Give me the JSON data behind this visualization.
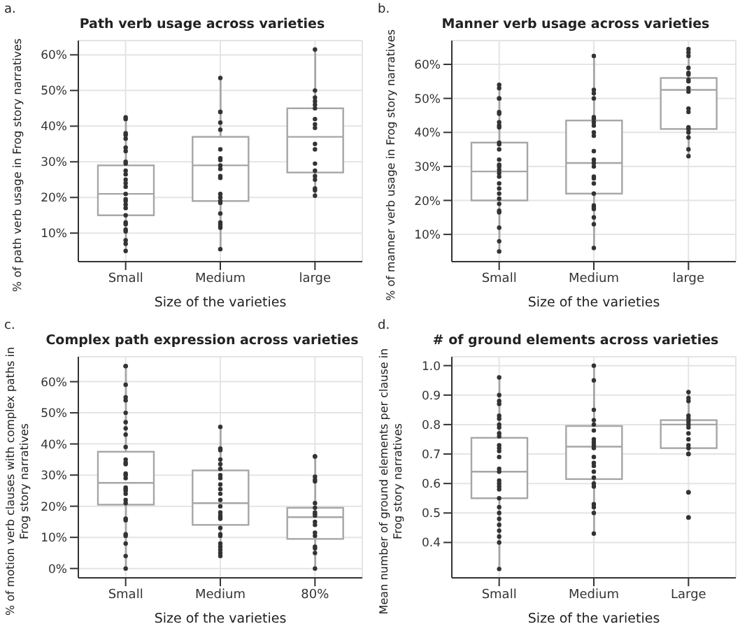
{
  "chart_data": [
    {
      "type": "box",
      "title": "Path verb usage across varieties",
      "xlabel": "Size of the varieties",
      "ylabel": "% of path verb usage in Frog story narratives",
      "annotations": [
        "a."
      ],
      "categories": [
        "Small",
        "Medium",
        "large"
      ],
      "grid": true,
      "ylim": [
        2,
        64
      ],
      "yticks": [
        {
          "value": 10,
          "label": "10%"
        },
        {
          "value": 20,
          "label": "20%"
        },
        {
          "value": 30,
          "label": "30%"
        },
        {
          "value": 40,
          "label": "40%"
        },
        {
          "value": 50,
          "label": "50%"
        },
        {
          "value": 60,
          "label": "60%"
        }
      ],
      "series": [
        {
          "type": "box",
          "color": "#a6a6a6",
          "boxes": [
            {
              "low": 5,
              "q1": 15,
              "median": 21,
              "q3": 29,
              "high": 42.5
            },
            {
              "low": 5.5,
              "q1": 19,
              "median": 29,
              "q3": 37,
              "high": 53.5
            },
            {
              "low": 20.5,
              "q1": 27,
              "median": 37,
              "q3": 45,
              "high": 61.5
            }
          ]
        },
        {
          "type": "scatter",
          "color": "#333333",
          "x": [
            "Small",
            "Small",
            "Small",
            "Small",
            "Small",
            "Small",
            "Small",
            "Small",
            "Small",
            "Small",
            "Small",
            "Small",
            "Small",
            "Small",
            "Small",
            "Small",
            "Small",
            "Small",
            "Small",
            "Small",
            "Small",
            "Small",
            "Small",
            "Small",
            "Small",
            "Small",
            "Small",
            "Medium",
            "Medium",
            "Medium",
            "Medium",
            "Medium",
            "Medium",
            "Medium",
            "Medium",
            "Medium",
            "Medium",
            "Medium",
            "Medium",
            "Medium",
            "Medium",
            "Medium",
            "Medium",
            "Medium",
            "Medium",
            "Medium",
            "Medium",
            "Medium",
            "Medium",
            "large",
            "large",
            "large",
            "large",
            "large",
            "large",
            "large",
            "large",
            "large",
            "large",
            "large",
            "large",
            "large",
            "large",
            "large",
            "large",
            "large",
            "large"
          ],
          "values": [
            42,
            42.5,
            38,
            37.5,
            36.5,
            34,
            33,
            30,
            29.5,
            27.5,
            26.5,
            25,
            24,
            23,
            21,
            19.5,
            18,
            17,
            15,
            13,
            12.5,
            11,
            10.5,
            8,
            7,
            5,
            19,
            53.5,
            44,
            44,
            41,
            39,
            33.5,
            31,
            30.5,
            29,
            28,
            26,
            25.5,
            21,
            20,
            19,
            18.5,
            15.5,
            13,
            12.5,
            11.5,
            5.5,
            12,
            61.5,
            50,
            48,
            47,
            46,
            45,
            42,
            40.5,
            39.5,
            35,
            33.5,
            29.5,
            27.5,
            26,
            25,
            22.5,
            22,
            20.5
          ]
        }
      ]
    },
    {
      "type": "box",
      "title": "Manner verb usage across varieties",
      "xlabel": "Size of the varieties",
      "ylabel": "% of manner verb usage in Frog story narratives",
      "annotations": [
        "b."
      ],
      "categories": [
        "Small",
        "Medium",
        "large"
      ],
      "grid": true,
      "ylim": [
        2,
        67
      ],
      "yticks": [
        {
          "value": 10,
          "label": "10%"
        },
        {
          "value": 20,
          "label": "20%"
        },
        {
          "value": 30,
          "label": "30%"
        },
        {
          "value": 40,
          "label": "40%"
        },
        {
          "value": 50,
          "label": "50%"
        },
        {
          "value": 60,
          "label": "60%"
        }
      ],
      "series": [
        {
          "type": "box",
          "color": "#a6a6a6",
          "boxes": [
            {
              "low": 5,
              "q1": 20,
              "median": 28.5,
              "q3": 37,
              "high": 54
            },
            {
              "low": 6,
              "q1": 22,
              "median": 31,
              "q3": 43.5,
              "high": 62.5
            },
            {
              "low": 33,
              "q1": 41,
              "median": 52.5,
              "q3": 56,
              "high": 64.5
            }
          ]
        },
        {
          "type": "scatter",
          "color": "#333333",
          "x": [
            "Small",
            "Small",
            "Small",
            "Small",
            "Small",
            "Small",
            "Small",
            "Small",
            "Small",
            "Small",
            "Small",
            "Small",
            "Small",
            "Small",
            "Small",
            "Small",
            "Small",
            "Small",
            "Small",
            "Small",
            "Small",
            "Small",
            "Small",
            "Small",
            "Small",
            "Small",
            "Small",
            "Small",
            "Medium",
            "Medium",
            "Medium",
            "Medium",
            "Medium",
            "Medium",
            "Medium",
            "Medium",
            "Medium",
            "Medium",
            "Medium",
            "Medium",
            "Medium",
            "Medium",
            "Medium",
            "Medium",
            "Medium",
            "Medium",
            "Medium",
            "Medium",
            "Medium",
            "Medium",
            "Medium",
            "Medium",
            "large",
            "large",
            "large",
            "large",
            "large",
            "large",
            "large",
            "large",
            "large",
            "large",
            "large",
            "large",
            "large",
            "large",
            "large",
            "large",
            "large",
            "large"
          ],
          "values": [
            54,
            53,
            50,
            50,
            46,
            45.5,
            43,
            42,
            41.5,
            37,
            36.5,
            35,
            32,
            30.5,
            30,
            29,
            28,
            27,
            25,
            23.5,
            22,
            20.5,
            19,
            17,
            16.5,
            12,
            8,
            5,
            62.5,
            52.5,
            51.5,
            50,
            44.5,
            44,
            43,
            42,
            40,
            39,
            34.5,
            32,
            31,
            30,
            27,
            26.5,
            25,
            22,
            18.5,
            18,
            17.5,
            15,
            13,
            6,
            64.5,
            63.5,
            62.5,
            59,
            57.5,
            57,
            55.5,
            55,
            53,
            52,
            47,
            46,
            41.5,
            41,
            40,
            38.5,
            35,
            33
          ]
        }
      ]
    },
    {
      "type": "box",
      "title": "Complex path expression across varieties",
      "xlabel": "Size of the varieties",
      "ylabel": "% of motion verb clauses with complex paths in Frog story narratives",
      "annotations": [
        "c."
      ],
      "categories": [
        "Small",
        "Medium",
        "80%"
      ],
      "grid": true,
      "ylim": [
        -3,
        68
      ],
      "yticks": [
        {
          "value": 0,
          "label": "0%"
        },
        {
          "value": 10,
          "label": "10%"
        },
        {
          "value": 20,
          "label": "20%"
        },
        {
          "value": 30,
          "label": "30%"
        },
        {
          "value": 40,
          "label": "40%"
        },
        {
          "value": 50,
          "label": "50%"
        },
        {
          "value": 60,
          "label": "60%"
        }
      ],
      "series": [
        {
          "type": "box",
          "color": "#a6a6a6",
          "boxes": [
            {
              "low": 0,
              "q1": 20.5,
              "median": 27.5,
              "q3": 37.5,
              "high": 65
            },
            {
              "low": 3.5,
              "q1": 14,
              "median": 21,
              "q3": 31.5,
              "high": 45.5
            },
            {
              "low": 0,
              "q1": 9.5,
              "median": 16.5,
              "q3": 19.5,
              "high": 36
            }
          ]
        },
        {
          "type": "scatter",
          "color": "#333333",
          "x": [
            "Small",
            "Small",
            "Small",
            "Small",
            "Small",
            "Small",
            "Small",
            "Small",
            "Small",
            "Small",
            "Small",
            "Small",
            "Small",
            "Small",
            "Small",
            "Small",
            "Small",
            "Small",
            "Small",
            "Small",
            "Small",
            "Small",
            "Small",
            "Small",
            "Small",
            "Small",
            "Small",
            "Small",
            "Small",
            "Medium",
            "Medium",
            "Medium",
            "Medium",
            "Medium",
            "Medium",
            "Medium",
            "Medium",
            "Medium",
            "Medium",
            "Medium",
            "Medium",
            "Medium",
            "Medium",
            "Medium",
            "Medium",
            "Medium",
            "Medium",
            "Medium",
            "Medium",
            "Medium",
            "Medium",
            "Medium",
            "Medium",
            "Medium",
            "80%",
            "80%",
            "80%",
            "80%",
            "80%",
            "80%",
            "80%",
            "80%",
            "80%",
            "80%",
            "80%",
            "80%",
            "80%",
            "80%",
            "80%",
            "80%",
            "80%",
            "80%"
          ],
          "values": [
            65,
            65,
            59,
            55,
            54,
            50,
            47,
            45,
            43,
            39,
            35,
            34,
            33.5,
            30.5,
            30,
            29,
            26,
            25.5,
            25,
            24,
            22,
            21,
            16,
            15.5,
            11,
            10.5,
            8,
            4,
            0,
            45.5,
            38.5,
            38,
            35,
            33.5,
            32,
            30,
            29,
            27,
            25.5,
            24,
            22,
            20,
            18,
            17,
            16.5,
            16,
            13,
            11,
            10.5,
            8,
            7,
            6,
            5,
            4,
            36,
            36,
            29.5,
            28.5,
            28,
            21,
            19.5,
            18,
            17.5,
            17,
            15,
            14,
            11.5,
            10.5,
            7,
            6.5,
            5,
            0
          ]
        }
      ]
    },
    {
      "type": "box",
      "title": "# of ground elements across varieties",
      "xlabel": "Size of the varieties",
      "ylabel": "Mean number of ground elements per clause in Frog story narratives",
      "annotations": [
        "d."
      ],
      "categories": [
        "Small",
        "Medium",
        "Large"
      ],
      "grid": true,
      "ylim": [
        0.28,
        1.03
      ],
      "yticks": [
        {
          "value": 0.4,
          "label": "0.4"
        },
        {
          "value": 0.5,
          "label": "0.5"
        },
        {
          "value": 0.6,
          "label": "0.6"
        },
        {
          "value": 0.7,
          "label": "0.7"
        },
        {
          "value": 0.8,
          "label": "0.8"
        },
        {
          "value": 0.9,
          "label": "0.9"
        },
        {
          "value": 1,
          "label": "1.0"
        }
      ],
      "series": [
        {
          "type": "box",
          "color": "#a6a6a6",
          "boxes": [
            {
              "low": 0.31,
              "q1": 0.55,
              "median": 0.64,
              "q3": 0.755,
              "high": 0.96
            },
            {
              "low": 0.43,
              "q1": 0.615,
              "median": 0.725,
              "q3": 0.795,
              "high": 1
            },
            {
              "low": 0.7,
              "q1": 0.72,
              "median": 0.8,
              "q3": 0.815,
              "high": 0.91
            }
          ]
        },
        {
          "type": "scatter",
          "color": "#333333",
          "x": [
            "Small",
            "Small",
            "Small",
            "Small",
            "Small",
            "Small",
            "Small",
            "Small",
            "Small",
            "Small",
            "Small",
            "Small",
            "Small",
            "Small",
            "Small",
            "Small",
            "Small",
            "Small",
            "Small",
            "Small",
            "Small",
            "Small",
            "Small",
            "Small",
            "Small",
            "Small",
            "Small",
            "Small",
            "Small",
            "Medium",
            "Medium",
            "Medium",
            "Medium",
            "Medium",
            "Medium",
            "Medium",
            "Medium",
            "Medium",
            "Medium",
            "Medium",
            "Medium",
            "Medium",
            "Medium",
            "Medium",
            "Medium",
            "Medium",
            "Medium",
            "Medium",
            "Medium",
            "Medium",
            "Large",
            "Large",
            "Large",
            "Large",
            "Large",
            "Large",
            "Large",
            "Large",
            "Large",
            "Large",
            "Large",
            "Large",
            "Large",
            "Large",
            "Large",
            "Large",
            "Large",
            "Large"
          ],
          "values": [
            0.96,
            0.9,
            0.88,
            0.87,
            0.83,
            0.82,
            0.8,
            0.79,
            0.77,
            0.76,
            0.73,
            0.72,
            0.71,
            0.69,
            0.65,
            0.64,
            0.61,
            0.6,
            0.59,
            0.58,
            0.55,
            0.52,
            0.5,
            0.48,
            0.46,
            0.44,
            0.42,
            0.4,
            0.31,
            1,
            0.95,
            0.85,
            0.815,
            0.8,
            0.78,
            0.75,
            0.74,
            0.73,
            0.72,
            0.69,
            0.67,
            0.66,
            0.64,
            0.62,
            0.6,
            0.59,
            0.53,
            0.52,
            0.5,
            0.43,
            0.91,
            0.89,
            0.88,
            0.83,
            0.82,
            0.81,
            0.8,
            0.79,
            0.77,
            0.75,
            0.73,
            0.72,
            0.7,
            0.7,
            0.57,
            0.57,
            0.485,
            0.485
          ]
        }
      ]
    }
  ]
}
